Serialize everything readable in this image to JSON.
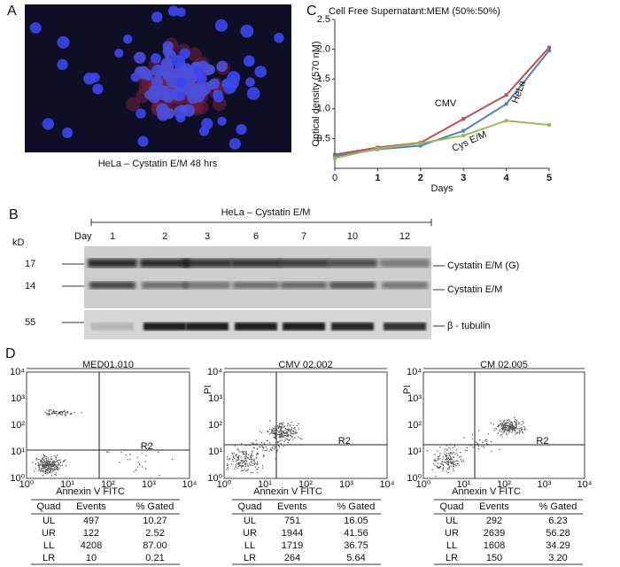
{
  "panel_labels": [
    "A",
    "B",
    "C",
    "D"
  ],
  "panel_a": {
    "caption": "HeLa – Cystatin E/M 48 hrs"
  },
  "panel_b": {
    "header": "HeLa – Cystatin E/M",
    "kd_label": "kD",
    "day_label": "Day",
    "days": [
      "1",
      "2",
      "3",
      "6",
      "7",
      "10",
      "12"
    ],
    "markers": [
      "17",
      "14",
      "55"
    ],
    "bands": [
      "Cystatin E/M (G)",
      "Cystatin E/M",
      "β - tubulin"
    ]
  },
  "chart_data": {
    "type": "line",
    "title": "Cell Free Supernatant:MEM (50%:50%)",
    "x_label": "Days",
    "y_label": "Optical density (570 nM)",
    "x": [
      0,
      1,
      2,
      3,
      4,
      5
    ],
    "xlim": [
      0,
      5
    ],
    "xticks": [
      0,
      1,
      2,
      3,
      4,
      5
    ],
    "ylim": [
      0,
      2.5
    ],
    "yticks": [
      0.5,
      {
        "value": 1,
        "label": "1.0"
      },
      1.5,
      {
        "value": 2,
        "label": "2.0"
      },
      2.5
    ],
    "series": [
      {
        "name": "CMV",
        "color": "#c0504d",
        "values": [
          0.23,
          0.35,
          0.43,
          0.83,
          1.23,
          2.03
        ]
      },
      {
        "name": "HeLa",
        "color": "#4f81bd",
        "values": [
          0.2,
          0.32,
          0.38,
          0.63,
          1.08,
          1.98
        ]
      },
      {
        "name": "Cys E/M",
        "color": "#9bbb59",
        "values": [
          0.17,
          0.33,
          0.42,
          0.55,
          0.8,
          0.73
        ]
      }
    ]
  },
  "panel_d": {
    "tick_labels": [
      "10⁰",
      "10¹",
      "10²",
      "10³",
      "10⁴"
    ],
    "x_label": "Annexin V FITC",
    "gate_label": "R2",
    "plots": [
      {
        "title": "MED01.010"
      },
      {
        "title": "CMV 02.002",
        "y_label": "PI"
      },
      {
        "title": "CM 02.005",
        "y_label": "PI"
      }
    ],
    "table_header": [
      "Quad",
      "Events",
      "% Gated"
    ],
    "tables": [
      [
        [
          "UL",
          "497",
          "10.27"
        ],
        [
          "UR",
          "122",
          "2.52"
        ],
        [
          "LL",
          "4208",
          "87.00"
        ],
        [
          "LR",
          "10",
          "0.21"
        ]
      ],
      [
        [
          "UL",
          "751",
          "16.05"
        ],
        [
          "UR",
          "1944",
          "41.56"
        ],
        [
          "LL",
          "1719",
          "36.75"
        ],
        [
          "LR",
          "264",
          "5.64"
        ]
      ],
      [
        [
          "UL",
          "292",
          "6.23"
        ],
        [
          "UR",
          "2639",
          "56.28"
        ],
        [
          "LL",
          "1608",
          "34.29"
        ],
        [
          "LR",
          "150",
          "3.20"
        ]
      ]
    ]
  }
}
